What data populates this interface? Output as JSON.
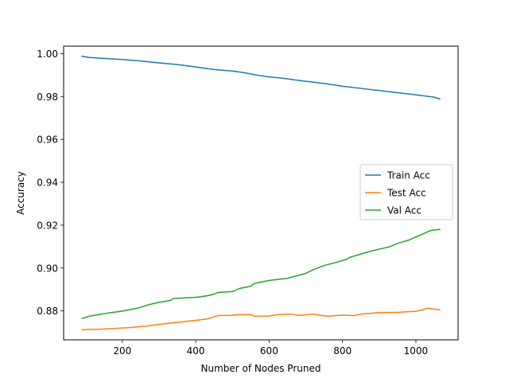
{
  "chart_data": {
    "type": "line",
    "title": "",
    "xlabel": "Number of Nodes Pruned",
    "ylabel": "Accuracy",
    "xlim": [
      40,
      1115
    ],
    "ylim": [
      0.8665,
      1.0035
    ],
    "xticks": [
      200,
      400,
      600,
      800,
      1000
    ],
    "xtick_labels": [
      "200",
      "400",
      "600",
      "800",
      "1000"
    ],
    "yticks": [
      0.88,
      0.9,
      0.92,
      0.94,
      0.96,
      0.98,
      1.0
    ],
    "ytick_labels": [
      "0.88",
      "0.90",
      "0.92",
      "0.94",
      "0.96",
      "0.98",
      "1.00"
    ],
    "grid": false,
    "legend_position": "center-right",
    "series": [
      {
        "name": "Train Acc",
        "color": "#1f77b4",
        "x": [
          90,
          110,
          150,
          200,
          250,
          300,
          350,
          400,
          450,
          500,
          530,
          560,
          600,
          630,
          660,
          700,
          750,
          800,
          850,
          900,
          950,
          1000,
          1050,
          1065
        ],
        "y": [
          0.9988,
          0.9982,
          0.9978,
          0.9973,
          0.9966,
          0.9957,
          0.9949,
          0.9938,
          0.9926,
          0.9919,
          0.9912,
          0.9902,
          0.9891,
          0.9887,
          0.988,
          0.9871,
          0.9861,
          0.9848,
          0.9838,
          0.9828,
          0.9818,
          0.9808,
          0.9797,
          0.9789
        ]
      },
      {
        "name": "Test Acc",
        "color": "#ff7f0e",
        "x": [
          90,
          150,
          220,
          270,
          320,
          370,
          430,
          460,
          500,
          510,
          550,
          560,
          600,
          620,
          660,
          680,
          720,
          730,
          760,
          800,
          830,
          850,
          880,
          900,
          950,
          1000,
          1020,
          1030,
          1050,
          1065
        ],
        "y": [
          0.8712,
          0.8715,
          0.8722,
          0.873,
          0.8741,
          0.875,
          0.8762,
          0.8778,
          0.8779,
          0.8782,
          0.8783,
          0.8775,
          0.8776,
          0.8782,
          0.8785,
          0.8779,
          0.8785,
          0.8782,
          0.8775,
          0.878,
          0.8778,
          0.8785,
          0.8789,
          0.8792,
          0.8793,
          0.8798,
          0.8805,
          0.8813,
          0.8808,
          0.8805
        ]
      },
      {
        "name": "Val Acc",
        "color": "#2ca02c",
        "x": [
          90,
          110,
          150,
          200,
          240,
          270,
          300,
          330,
          340,
          400,
          430,
          450,
          460,
          500,
          520,
          550,
          560,
          600,
          650,
          700,
          720,
          750,
          780,
          810,
          820,
          850,
          880,
          900,
          930,
          950,
          980,
          1000,
          1020,
          1040,
          1065
        ],
        "y": [
          0.8764,
          0.8775,
          0.8787,
          0.8799,
          0.8812,
          0.8828,
          0.884,
          0.8848,
          0.8858,
          0.8863,
          0.887,
          0.8878,
          0.8886,
          0.889,
          0.8905,
          0.8915,
          0.8928,
          0.8942,
          0.8952,
          0.8975,
          0.8992,
          0.9012,
          0.9025,
          0.904,
          0.905,
          0.9065,
          0.908,
          0.9088,
          0.91,
          0.9115,
          0.913,
          0.9145,
          0.916,
          0.9175,
          0.918
        ]
      }
    ]
  }
}
